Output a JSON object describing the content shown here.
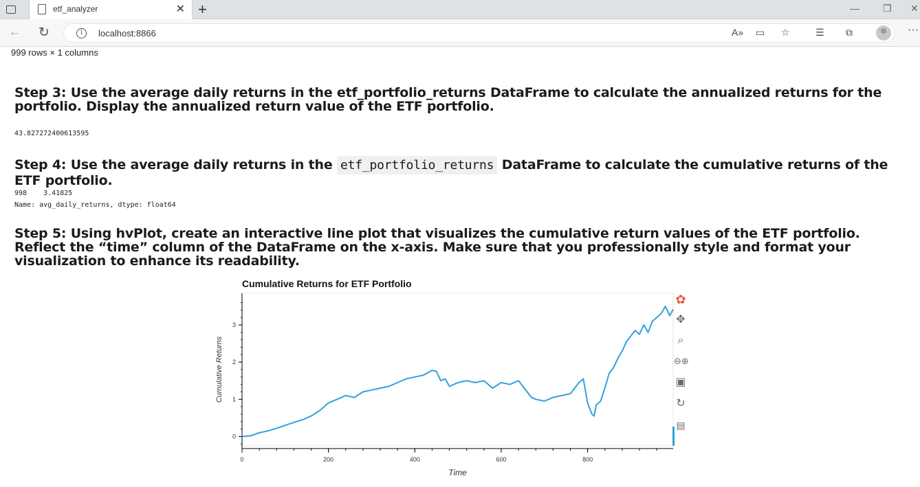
{
  "browser": {
    "tab_title": "etf_analyzer",
    "url": "localhost:8866"
  },
  "notebook": {
    "rows_note": "999 rows × 1 columns",
    "step3_heading": "Step 3: Use the average daily returns in the etf_portfolio_returns DataFrame to calculate the annualized returns for the portfolio. Display the annualized return value of the ETF portfolio.",
    "step3_output": "43.827272400613595",
    "step4_heading_prefix": "Step 4: Use the average daily returns in the ",
    "step4_heading_code": "etf_portfolio_returns",
    "step4_heading_suffix": " DataFrame to calculate the cumulative returns of the ETF portfolio.",
    "step4_output_line1": "998    3.41825",
    "step4_output_line2": "Name: avg_daily_returns, dtype: float64",
    "step5_heading": "Step 5: Using hvPlot, create an interactive line plot that visualizes the cumulative return values of the ETF portfolio. Reflect the “time” column of the DataFrame on the x-axis. Make sure that you professionally style and format your visualization to enhance its readability."
  },
  "chart_data": {
    "type": "line",
    "title": "Cumulative Returns for ETF Portfolio",
    "xlabel": "Time",
    "ylabel": "Cumulative Returns",
    "xlim": [
      0,
      998
    ],
    "ylim": [
      -0.25,
      3.85
    ],
    "xticks": [
      0,
      200,
      400,
      600,
      800
    ],
    "yticks": [
      0,
      1,
      2,
      3
    ],
    "line_color": "#30a2da",
    "series": [
      {
        "x": [
          0,
          20,
          40,
          60,
          80,
          100,
          120,
          140,
          160,
          180,
          200,
          220,
          240,
          260,
          280,
          300,
          320,
          340,
          360,
          380,
          400,
          420,
          440,
          450,
          460,
          470,
          480,
          490,
          500,
          520,
          540,
          560,
          580,
          600,
          620,
          640,
          660,
          670,
          680,
          700,
          720,
          740,
          760,
          780,
          790,
          800,
          810,
          815,
          820,
          830,
          840,
          850,
          860,
          870,
          880,
          890,
          900,
          910,
          920,
          930,
          940,
          950,
          960,
          970,
          980,
          990,
          998
        ],
        "y": [
          0.0,
          0.02,
          0.1,
          0.15,
          0.22,
          0.3,
          0.38,
          0.45,
          0.55,
          0.7,
          0.9,
          1.0,
          1.1,
          1.05,
          1.2,
          1.25,
          1.3,
          1.35,
          1.45,
          1.55,
          1.6,
          1.65,
          1.78,
          1.75,
          1.5,
          1.55,
          1.35,
          1.4,
          1.45,
          1.5,
          1.45,
          1.5,
          1.3,
          1.45,
          1.4,
          1.5,
          1.2,
          1.05,
          1.0,
          0.95,
          1.05,
          1.1,
          1.15,
          1.45,
          1.55,
          0.9,
          0.6,
          0.55,
          0.85,
          0.95,
          1.3,
          1.7,
          1.85,
          2.1,
          2.3,
          2.55,
          2.7,
          2.85,
          2.75,
          3.0,
          2.8,
          3.1,
          3.2,
          3.3,
          3.5,
          3.25,
          3.41825
        ]
      }
    ]
  }
}
